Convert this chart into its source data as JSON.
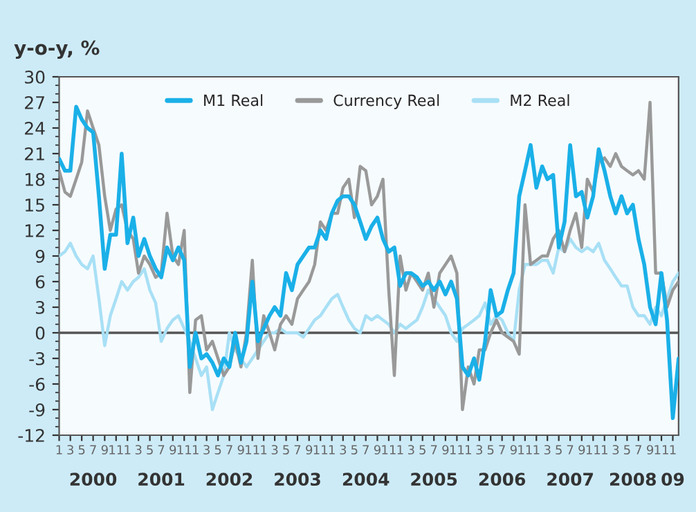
{
  "chart_data": {
    "type": "line",
    "ylabel": "y-o-y, %",
    "x": [
      "2000-01",
      "2000-02",
      "2000-03",
      "2000-04",
      "2000-05",
      "2000-06",
      "2000-07",
      "2000-08",
      "2000-09",
      "2000-10",
      "2000-11",
      "2000-12",
      "2001-01",
      "2001-02",
      "2001-03",
      "2001-04",
      "2001-05",
      "2001-06",
      "2001-07",
      "2001-08",
      "2001-09",
      "2001-10",
      "2001-11",
      "2001-12",
      "2002-01",
      "2002-02",
      "2002-03",
      "2002-04",
      "2002-05",
      "2002-06",
      "2002-07",
      "2002-08",
      "2002-09",
      "2002-10",
      "2002-11",
      "2002-12",
      "2003-01",
      "2003-02",
      "2003-03",
      "2003-04",
      "2003-05",
      "2003-06",
      "2003-07",
      "2003-08",
      "2003-09",
      "2003-10",
      "2003-11",
      "2003-12",
      "2004-01",
      "2004-02",
      "2004-03",
      "2004-04",
      "2004-05",
      "2004-06",
      "2004-07",
      "2004-08",
      "2004-09",
      "2004-10",
      "2004-11",
      "2004-12",
      "2005-01",
      "2005-02",
      "2005-03",
      "2005-04",
      "2005-05",
      "2005-06",
      "2005-07",
      "2005-08",
      "2005-09",
      "2005-10",
      "2005-11",
      "2005-12",
      "2006-01",
      "2006-02",
      "2006-03",
      "2006-04",
      "2006-05",
      "2006-06",
      "2006-07",
      "2006-08",
      "2006-09",
      "2006-10",
      "2006-11",
      "2006-12",
      "2007-01",
      "2007-02",
      "2007-03",
      "2007-04",
      "2007-05",
      "2007-06",
      "2007-07",
      "2007-08",
      "2007-09",
      "2007-10",
      "2007-11",
      "2007-12",
      "2008-01",
      "2008-02",
      "2008-03",
      "2008-04",
      "2008-05",
      "2008-06",
      "2008-07",
      "2008-08",
      "2008-09",
      "2008-10",
      "2008-11",
      "2008-12",
      "2009-01",
      "2009-02"
    ],
    "x2lim": [
      "2000-01",
      "2009-02"
    ],
    "xlim": [
      "2000-01",
      "2009-02"
    ],
    "ylim": [
      -12,
      30
    ],
    "yticks": [
      -12,
      -9,
      -6,
      -3,
      0,
      3,
      6,
      9,
      12,
      15,
      18,
      21,
      24,
      27,
      30
    ],
    "xticks": [
      {
        "value": "2000-01",
        "label": "1"
      },
      {
        "value": "2000-03",
        "label": "3"
      },
      {
        "value": "2000-05",
        "label": "5"
      },
      {
        "value": "2000-07",
        "label": "7"
      },
      {
        "value": "2000-09",
        "label": "9"
      },
      {
        "value": "2000-11",
        "label": "11"
      },
      {
        "value": "2001-01",
        "label": "1"
      },
      {
        "value": "2001-03",
        "label": "3"
      },
      {
        "value": "2001-05",
        "label": "5"
      },
      {
        "value": "2001-07",
        "label": "7"
      },
      {
        "value": "2001-09",
        "label": "9"
      },
      {
        "value": "2001-11",
        "label": "11"
      },
      {
        "value": "2002-01",
        "label": "1"
      },
      {
        "value": "2002-03",
        "label": "3"
      },
      {
        "value": "2002-05",
        "label": "5"
      },
      {
        "value": "2002-07",
        "label": "7"
      },
      {
        "value": "2002-09",
        "label": "9"
      },
      {
        "value": "2002-11",
        "label": "11"
      },
      {
        "value": "2003-01",
        "label": "1"
      },
      {
        "value": "2003-03",
        "label": "3"
      },
      {
        "value": "2003-05",
        "label": "5"
      },
      {
        "value": "2003-07",
        "label": "7"
      },
      {
        "value": "2003-09",
        "label": "9"
      },
      {
        "value": "2003-11",
        "label": "11"
      },
      {
        "value": "2004-01",
        "label": "1"
      },
      {
        "value": "2004-03",
        "label": "3"
      },
      {
        "value": "2004-05",
        "label": "5"
      },
      {
        "value": "2004-07",
        "label": "7"
      },
      {
        "value": "2004-09",
        "label": "9"
      },
      {
        "value": "2004-11",
        "label": "11"
      },
      {
        "value": "2005-01",
        "label": "1"
      },
      {
        "value": "2005-03",
        "label": "3"
      },
      {
        "value": "2005-05",
        "label": "5"
      },
      {
        "value": "2005-07",
        "label": "7"
      },
      {
        "value": "2005-09",
        "label": "9"
      },
      {
        "value": "2005-11",
        "label": "11"
      },
      {
        "value": "2006-01",
        "label": "1"
      },
      {
        "value": "2006-03",
        "label": "3"
      },
      {
        "value": "2006-05",
        "label": "5"
      },
      {
        "value": "2006-07",
        "label": "7"
      },
      {
        "value": "2006-09",
        "label": "9"
      },
      {
        "value": "2006-11",
        "label": "11"
      },
      {
        "value": "2007-01",
        "label": "1"
      },
      {
        "value": "2007-03",
        "label": "3"
      },
      {
        "value": "2007-05",
        "label": "5"
      },
      {
        "value": "2007-07",
        "label": "7"
      },
      {
        "value": "2007-09",
        "label": "9"
      },
      {
        "value": "2007-11",
        "label": "11"
      },
      {
        "value": "2008-01",
        "label": "1"
      },
      {
        "value": "2008-03",
        "label": "3"
      },
      {
        "value": "2008-05",
        "label": "5"
      },
      {
        "value": "2008-07",
        "label": "7"
      },
      {
        "value": "2008-09",
        "label": "9"
      },
      {
        "value": "2008-11",
        "label": "11"
      },
      {
        "value": "2009-01",
        "label": "1"
      }
    ],
    "x2ticks": [
      {
        "value": "2000-07",
        "label": "2000"
      },
      {
        "value": "2001-07",
        "label": "2001"
      },
      {
        "value": "2002-07",
        "label": "2002"
      },
      {
        "value": "2003-07",
        "label": "2003"
      },
      {
        "value": "2004-07",
        "label": "2004"
      },
      {
        "value": "2005-07",
        "label": "2005"
      },
      {
        "value": "2006-07",
        "label": "2006"
      },
      {
        "value": "2007-07",
        "label": "2007"
      },
      {
        "value": "2008-06",
        "label": "2008"
      },
      {
        "value": "2009-01",
        "label": "09"
      }
    ],
    "ref_lines": [
      {
        "axis": "y",
        "value": 0,
        "color": "#555555"
      }
    ],
    "legend": "top",
    "grid": false,
    "marker": "none",
    "line_style": "solid",
    "series": [
      {
        "name": "M1 Real",
        "color": "#1ab0e8",
        "values": [
          20.4,
          19,
          19,
          26.5,
          25,
          24,
          23.5,
          16,
          7.5,
          11.5,
          11.5,
          21,
          10.5,
          13.5,
          9,
          11,
          9,
          7.5,
          6.5,
          10,
          8.5,
          10,
          8.5,
          -4,
          0,
          -3,
          -2.5,
          -3.5,
          -5,
          -3,
          -4,
          0,
          -3.5,
          -1,
          6,
          -1,
          0.5,
          2,
          3,
          2,
          7,
          5,
          8,
          9,
          10,
          10,
          12,
          11,
          14,
          15.5,
          16,
          16,
          15,
          13,
          11,
          12.5,
          13.5,
          11,
          9.5,
          10,
          5.5,
          7,
          7,
          6.5,
          5.5,
          6,
          5,
          6,
          4.5,
          6,
          4,
          -4,
          -5,
          -3,
          -5.5,
          -1,
          5,
          2,
          2.5,
          5,
          7,
          16,
          19,
          22,
          17,
          19.5,
          18,
          18.5,
          10,
          13,
          22,
          16,
          16.5,
          13.5,
          16,
          21.5,
          19,
          16,
          14,
          16,
          14,
          15,
          11,
          8,
          3,
          1,
          7,
          1.5,
          -10,
          -3
        ]
      },
      {
        "name": "Currency Real",
        "color": "#999999",
        "values": [
          19,
          16.5,
          16,
          18,
          20,
          26,
          24,
          22,
          16,
          12,
          14.5,
          15,
          12,
          11,
          7,
          9,
          8,
          6.5,
          7,
          14,
          9,
          8,
          12,
          -7,
          1.5,
          2,
          -2,
          -1,
          -3,
          -5,
          -4,
          -1,
          -4,
          0,
          8.5,
          -3,
          2,
          0,
          -2,
          1,
          2,
          1,
          4,
          5,
          6,
          8,
          13,
          12,
          14,
          14,
          17,
          18,
          13.5,
          19.5,
          19,
          15,
          16,
          18,
          5,
          -5,
          9,
          5,
          7,
          6,
          5,
          7,
          3,
          7,
          8,
          9,
          7,
          -9,
          -4,
          -6,
          -2,
          -2,
          0,
          1.5,
          0,
          -0.5,
          -1,
          -2.5,
          15,
          8,
          8.5,
          9,
          9,
          11,
          12,
          9.5,
          12,
          14,
          10,
          18,
          16.5,
          20,
          20.5,
          19.5,
          21,
          19.5,
          19,
          18.5,
          19,
          18,
          27,
          7,
          7,
          3,
          5,
          6
        ]
      },
      {
        "name": "M2 Real",
        "color": "#a8e0f5",
        "values": [
          9,
          9.5,
          10.5,
          9,
          8,
          7.5,
          9,
          4,
          -1.5,
          2,
          4,
          6,
          5,
          6,
          6.5,
          7.5,
          5,
          3.5,
          -1,
          0.5,
          1.5,
          2,
          0.5,
          -1,
          -3,
          -5,
          -4,
          -9,
          -7,
          -5,
          0,
          -2,
          -3,
          -4,
          -3,
          -2,
          -1,
          0,
          0,
          0.5,
          0,
          0,
          0,
          -0.5,
          0.5,
          1.5,
          2,
          3,
          4,
          4.5,
          3,
          1.5,
          0.5,
          0,
          2,
          1.5,
          2,
          1.5,
          1,
          0,
          1,
          0.5,
          1,
          1.5,
          3,
          5,
          4,
          3,
          2,
          0,
          -1,
          0.5,
          1,
          1.5,
          2,
          3.5,
          1,
          2,
          1.5,
          0,
          -1,
          5,
          8,
          8,
          8,
          8.5,
          8.5,
          7,
          10,
          9.5,
          11,
          10,
          9.5,
          10,
          9.5,
          10.5,
          8.5,
          7.5,
          6.5,
          5.5,
          5.5,
          3,
          2,
          2,
          1,
          3,
          2,
          4,
          6,
          7
        ]
      }
    ]
  }
}
